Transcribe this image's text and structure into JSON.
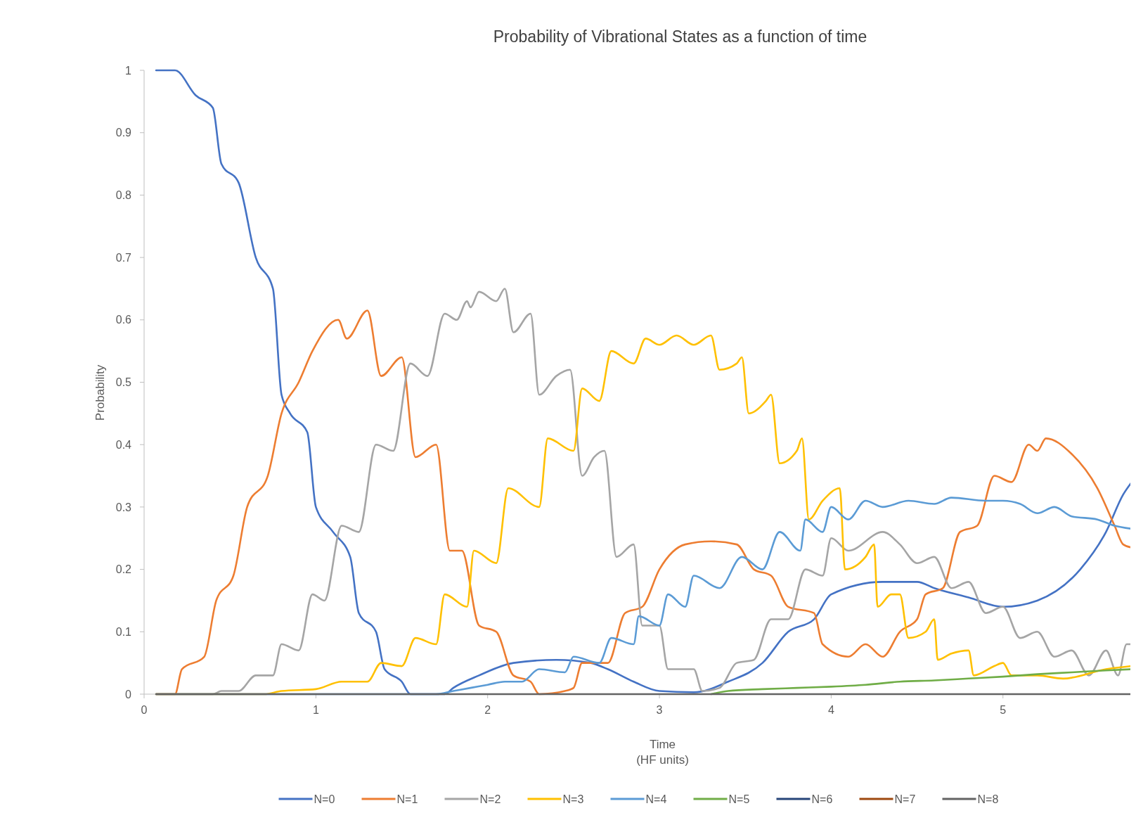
{
  "chart_data": {
    "type": "line",
    "title": "Probability of Vibrational States as a function of time",
    "xlabel": "Time\n(HF units)",
    "ylabel": "Probability",
    "xlim": [
      0,
      5.75
    ],
    "ylim": [
      0,
      1
    ],
    "xticks": [
      0,
      1,
      2,
      3,
      4,
      5
    ],
    "yticks": [
      0,
      0.1,
      0.2,
      0.3,
      0.4,
      0.5,
      0.6,
      0.7,
      0.8,
      0.9,
      1
    ],
    "grid": false,
    "legend": "bottom",
    "marker": "none",
    "line_style": "solid",
    "series": [
      {
        "name": "N=0",
        "color": "#4472c4",
        "x": [
          0.07,
          0.18,
          0.3,
          0.4,
          0.45,
          0.55,
          0.65,
          0.75,
          0.8,
          0.85,
          0.95,
          1.0,
          1.1,
          1.2,
          1.25,
          1.35,
          1.4,
          1.5,
          1.55,
          1.75,
          1.8,
          1.95,
          2.15,
          2.4,
          2.6,
          2.7,
          2.85,
          3.0,
          3.2,
          3.4,
          3.6,
          3.75,
          3.9,
          4.0,
          4.3,
          4.5,
          4.6,
          4.8,
          5.0,
          5.2,
          5.45,
          5.6,
          5.7,
          5.75
        ],
        "values": [
          1,
          1,
          0.96,
          0.94,
          0.85,
          0.82,
          0.7,
          0.65,
          0.48,
          0.45,
          0.42,
          0.3,
          0.26,
          0.22,
          0.13,
          0.1,
          0.04,
          0.02,
          0,
          0,
          0.01,
          0.03,
          0.05,
          0.055,
          0.05,
          0.04,
          0.02,
          0.005,
          0.003,
          0.02,
          0.05,
          0.1,
          0.12,
          0.16,
          0.18,
          0.18,
          0.17,
          0.155,
          0.14,
          0.15,
          0.2,
          0.26,
          0.32,
          0.34
        ]
      },
      {
        "name": "N=1",
        "color": "#ed7d31",
        "x": [
          0.07,
          0.18,
          0.22,
          0.35,
          0.42,
          0.52,
          0.6,
          0.72,
          0.8,
          0.9,
          0.98,
          1.13,
          1.18,
          1.3,
          1.38,
          1.5,
          1.58,
          1.7,
          1.78,
          1.85,
          1.95,
          2.05,
          2.15,
          2.25,
          2.3,
          2.45,
          2.5,
          2.55,
          2.7,
          2.8,
          2.9,
          3.0,
          3.15,
          3.3,
          3.45,
          3.55,
          3.65,
          3.75,
          3.9,
          3.95,
          4.1,
          4.2,
          4.3,
          4.4,
          4.5,
          4.55,
          4.65,
          4.75,
          4.85,
          4.95,
          5.05,
          5.15,
          5.2,
          5.25,
          5.4,
          5.55,
          5.65,
          5.7,
          5.75
        ],
        "values": [
          0,
          0,
          0.04,
          0.06,
          0.15,
          0.19,
          0.3,
          0.35,
          0.45,
          0.5,
          0.55,
          0.6,
          0.57,
          0.615,
          0.51,
          0.54,
          0.38,
          0.4,
          0.23,
          0.23,
          0.11,
          0.1,
          0.03,
          0.02,
          0,
          0.005,
          0.01,
          0.05,
          0.05,
          0.13,
          0.14,
          0.2,
          0.24,
          0.245,
          0.24,
          0.2,
          0.19,
          0.14,
          0.13,
          0.08,
          0.06,
          0.08,
          0.06,
          0.1,
          0.12,
          0.16,
          0.17,
          0.26,
          0.27,
          0.35,
          0.34,
          0.4,
          0.39,
          0.41,
          0.385,
          0.33,
          0.27,
          0.24,
          0.235
        ]
      },
      {
        "name": "N=2",
        "color": "#a5a5a5",
        "x": [
          0.07,
          0.4,
          0.45,
          0.55,
          0.65,
          0.75,
          0.8,
          0.9,
          0.98,
          1.05,
          1.15,
          1.25,
          1.35,
          1.45,
          1.55,
          1.65,
          1.75,
          1.82,
          1.88,
          1.9,
          1.95,
          2.05,
          2.1,
          2.15,
          2.25,
          2.3,
          2.4,
          2.48,
          2.55,
          2.62,
          2.68,
          2.75,
          2.85,
          2.9,
          3.0,
          3.05,
          3.2,
          3.25,
          3.35,
          3.45,
          3.55,
          3.65,
          3.75,
          3.85,
          3.95,
          4.0,
          4.1,
          4.3,
          4.4,
          4.5,
          4.6,
          4.7,
          4.8,
          4.9,
          5.0,
          5.1,
          5.2,
          5.3,
          5.4,
          5.5,
          5.6,
          5.67,
          5.72,
          5.75
        ],
        "values": [
          0,
          0,
          0.005,
          0.005,
          0.03,
          0.03,
          0.08,
          0.07,
          0.16,
          0.15,
          0.27,
          0.26,
          0.4,
          0.39,
          0.53,
          0.51,
          0.61,
          0.6,
          0.63,
          0.62,
          0.645,
          0.63,
          0.65,
          0.58,
          0.61,
          0.48,
          0.51,
          0.52,
          0.35,
          0.38,
          0.39,
          0.22,
          0.24,
          0.11,
          0.11,
          0.04,
          0.04,
          0.005,
          0.01,
          0.05,
          0.055,
          0.12,
          0.12,
          0.2,
          0.19,
          0.25,
          0.23,
          0.26,
          0.24,
          0.21,
          0.22,
          0.17,
          0.18,
          0.13,
          0.14,
          0.09,
          0.1,
          0.06,
          0.07,
          0.03,
          0.07,
          0.03,
          0.08,
          0.08
        ]
      },
      {
        "name": "N=3",
        "color": "#ffc000",
        "x": [
          0.07,
          0.7,
          0.8,
          1.0,
          1.15,
          1.3,
          1.38,
          1.5,
          1.58,
          1.7,
          1.75,
          1.88,
          1.92,
          2.05,
          2.12,
          2.3,
          2.35,
          2.5,
          2.55,
          2.65,
          2.72,
          2.85,
          2.92,
          3.0,
          3.1,
          3.2,
          3.3,
          3.35,
          3.45,
          3.48,
          3.52,
          3.62,
          3.65,
          3.7,
          3.8,
          3.83,
          3.87,
          3.95,
          4.05,
          4.08,
          4.2,
          4.25,
          4.27,
          4.35,
          4.4,
          4.45,
          4.55,
          4.6,
          4.62,
          4.7,
          4.8,
          4.83,
          4.95,
          5.0,
          5.05,
          5.2,
          5.35,
          5.6,
          5.75
        ],
        "values": [
          0,
          0,
          0.005,
          0.008,
          0.02,
          0.02,
          0.05,
          0.045,
          0.09,
          0.08,
          0.16,
          0.14,
          0.23,
          0.21,
          0.33,
          0.3,
          0.41,
          0.39,
          0.49,
          0.47,
          0.55,
          0.53,
          0.57,
          0.56,
          0.575,
          0.56,
          0.575,
          0.52,
          0.53,
          0.54,
          0.45,
          0.47,
          0.48,
          0.37,
          0.39,
          0.41,
          0.28,
          0.31,
          0.33,
          0.2,
          0.22,
          0.24,
          0.14,
          0.16,
          0.16,
          0.09,
          0.1,
          0.12,
          0.055,
          0.065,
          0.07,
          0.03,
          0.045,
          0.05,
          0.03,
          0.03,
          0.025,
          0.04,
          0.045
        ]
      },
      {
        "name": "N=4",
        "color": "#5b9bd5",
        "x": [
          0.07,
          1.7,
          1.8,
          1.9,
          2.0,
          2.1,
          2.2,
          2.3,
          2.45,
          2.5,
          2.65,
          2.72,
          2.85,
          2.88,
          3.0,
          3.05,
          3.15,
          3.2,
          3.35,
          3.48,
          3.6,
          3.7,
          3.82,
          3.85,
          3.95,
          4.0,
          4.1,
          4.2,
          4.3,
          4.45,
          4.6,
          4.7,
          4.9,
          5.0,
          5.1,
          5.2,
          5.3,
          5.4,
          5.55,
          5.65,
          5.75
        ],
        "values": [
          0,
          0,
          0.005,
          0.01,
          0.015,
          0.02,
          0.02,
          0.04,
          0.035,
          0.06,
          0.05,
          0.09,
          0.08,
          0.125,
          0.11,
          0.16,
          0.14,
          0.19,
          0.17,
          0.22,
          0.2,
          0.26,
          0.23,
          0.28,
          0.26,
          0.3,
          0.28,
          0.31,
          0.3,
          0.31,
          0.305,
          0.315,
          0.31,
          0.31,
          0.305,
          0.29,
          0.3,
          0.285,
          0.28,
          0.27,
          0.265
        ]
      },
      {
        "name": "N=5",
        "color": "#70ad47",
        "x": [
          3.3,
          3.4,
          3.6,
          3.8,
          4.0,
          4.2,
          4.4,
          4.6,
          4.8,
          5.0,
          5.2,
          5.4,
          5.6,
          5.75
        ],
        "values": [
          0,
          0.005,
          0.008,
          0.01,
          0.012,
          0.015,
          0.02,
          0.022,
          0.025,
          0.028,
          0.032,
          0.035,
          0.038,
          0.04
        ]
      },
      {
        "name": "N=6",
        "color": "#264478"
      },
      {
        "name": "N=7",
        "color": "#9e480e"
      },
      {
        "name": "N=8",
        "color": "#636363",
        "x": [
          0.07,
          5.75
        ],
        "values": [
          0,
          0
        ]
      }
    ]
  }
}
